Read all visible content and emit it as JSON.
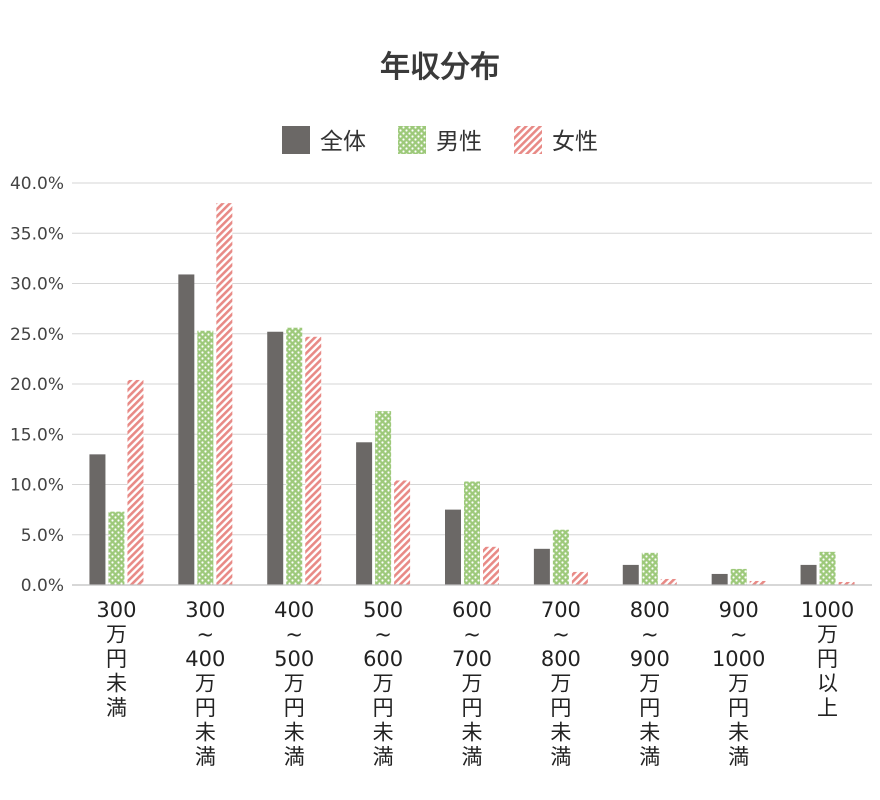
{
  "chart_data": {
    "type": "bar",
    "title": "年収分布",
    "xlabel": "",
    "ylabel": "",
    "categories": [
      [
        "300",
        "万",
        "円",
        "未",
        "満"
      ],
      [
        "300",
        "~",
        "400",
        "万",
        "円",
        "未",
        "満"
      ],
      [
        "400",
        "~",
        "500",
        "万",
        "円",
        "未",
        "満"
      ],
      [
        "500",
        "~",
        "600",
        "万",
        "円",
        "未",
        "満"
      ],
      [
        "600",
        "~",
        "700",
        "万",
        "円",
        "未",
        "満"
      ],
      [
        "700",
        "~",
        "800",
        "万",
        "円",
        "未",
        "満"
      ],
      [
        "800",
        "~",
        "900",
        "万",
        "円",
        "未",
        "満"
      ],
      [
        "900",
        "~",
        "1000",
        "万",
        "円",
        "未",
        "満"
      ],
      [
        "1000",
        "万",
        "円",
        "以",
        "上"
      ]
    ],
    "series": [
      {
        "name": "全体",
        "values": [
          13.0,
          30.9,
          25.2,
          14.2,
          7.5,
          3.6,
          2.0,
          1.1,
          2.0
        ]
      },
      {
        "name": "男性",
        "values": [
          7.3,
          25.3,
          25.6,
          17.3,
          10.3,
          5.5,
          3.2,
          1.6,
          3.3
        ]
      },
      {
        "name": "女性",
        "values": [
          20.4,
          38.0,
          24.7,
          10.4,
          3.8,
          1.3,
          0.6,
          0.4,
          0.3
        ]
      }
    ],
    "ylim": [
      0,
      40
    ],
    "yticks": [
      "0.0%",
      "5.0%",
      "10.0%",
      "15.0%",
      "20.0%",
      "25.0%",
      "30.0%",
      "35.0%",
      "40.0%"
    ],
    "grid": true,
    "legend_position": "top-center",
    "colors": {
      "全体": "#6b6866",
      "男性": "#9dc97a",
      "女性": "#e88a86"
    }
  }
}
